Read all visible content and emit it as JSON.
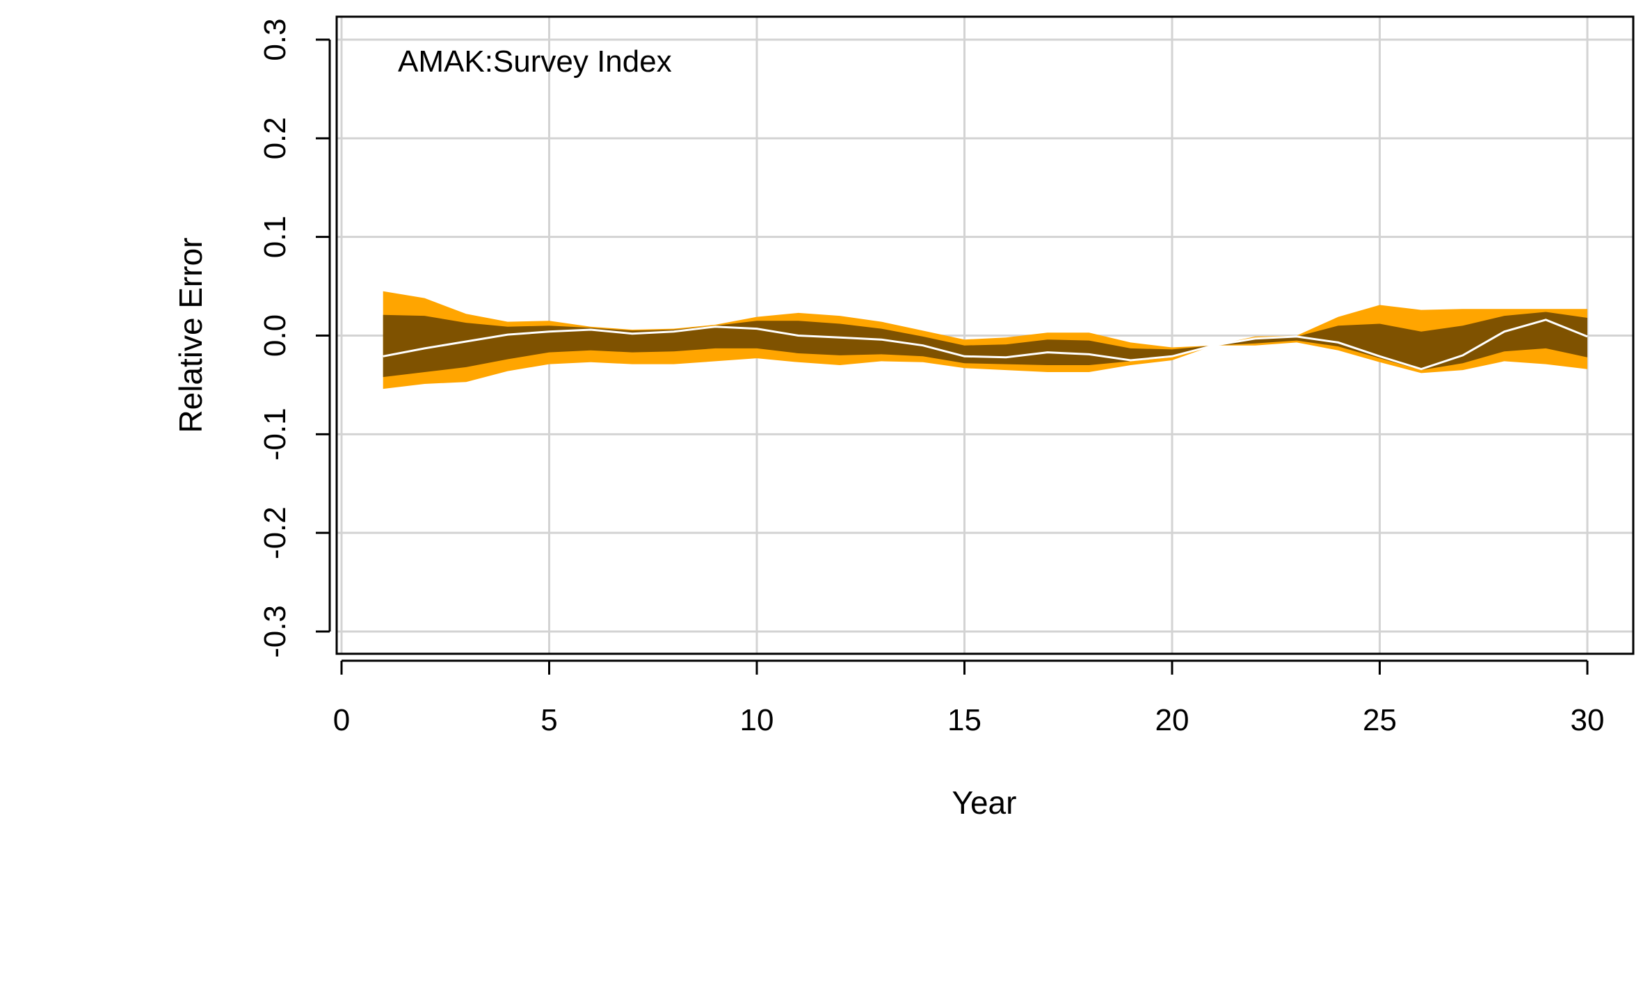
{
  "chart_data": {
    "type": "area",
    "title": "",
    "panel_label": "AMAK:Survey Index",
    "xlabel": "Year",
    "ylabel": "Relative Error",
    "xlim": [
      0,
      30
    ],
    "ylim": [
      -0.3,
      0.3
    ],
    "x_ticks": [
      0,
      5,
      10,
      15,
      20,
      25,
      30
    ],
    "x_tick_labels": [
      "0",
      "5",
      "10",
      "15",
      "20",
      "25",
      "30"
    ],
    "y_ticks": [
      -0.3,
      -0.2,
      -0.1,
      0.0,
      0.1,
      0.2,
      0.3
    ],
    "y_tick_labels": [
      "-0.3",
      "-0.2",
      "-0.1",
      "0.0",
      "0.1",
      "0.2",
      "0.3"
    ],
    "grid": true,
    "colors": {
      "outer_band": "#FFA500",
      "inner_band": "#7F5200",
      "median_line": "#FFFFFF",
      "grid": "#D3D3D3",
      "axis": "#000000"
    },
    "x": [
      1,
      2,
      3,
      4,
      5,
      6,
      7,
      8,
      9,
      10,
      11,
      12,
      13,
      14,
      15,
      16,
      17,
      18,
      19,
      20,
      21,
      22,
      23,
      24,
      25,
      26,
      27,
      28,
      29,
      30
    ],
    "series": [
      {
        "role": "outer_band",
        "upper": [
          0.045,
          0.038,
          0.022,
          0.014,
          0.015,
          0.009,
          0.006,
          0.007,
          0.011,
          0.019,
          0.023,
          0.02,
          0.014,
          0.005,
          -0.004,
          -0.002,
          0.003,
          0.003,
          -0.007,
          -0.012,
          -0.01,
          -0.001,
          0.0,
          0.019,
          0.031,
          0.026,
          0.027,
          0.027,
          0.027,
          0.027
        ],
        "lower": [
          -0.054,
          -0.049,
          -0.047,
          -0.036,
          -0.029,
          -0.027,
          -0.029,
          -0.029,
          -0.026,
          -0.023,
          -0.027,
          -0.03,
          -0.026,
          -0.027,
          -0.033,
          -0.035,
          -0.037,
          -0.037,
          -0.03,
          -0.025,
          -0.01,
          -0.01,
          -0.007,
          -0.015,
          -0.027,
          -0.038,
          -0.035,
          -0.026,
          -0.029,
          -0.034
        ]
      },
      {
        "role": "inner_band",
        "upper": [
          0.021,
          0.02,
          0.013,
          0.009,
          0.01,
          0.008,
          0.005,
          0.006,
          0.01,
          0.015,
          0.015,
          0.012,
          0.007,
          -0.001,
          -0.01,
          -0.009,
          -0.004,
          -0.005,
          -0.013,
          -0.014,
          -0.01,
          -0.003,
          -0.001,
          0.01,
          0.012,
          0.004,
          0.01,
          0.02,
          0.024,
          0.018
        ],
        "lower": [
          -0.042,
          -0.037,
          -0.032,
          -0.024,
          -0.017,
          -0.015,
          -0.017,
          -0.016,
          -0.013,
          -0.013,
          -0.018,
          -0.02,
          -0.019,
          -0.021,
          -0.028,
          -0.029,
          -0.03,
          -0.03,
          -0.026,
          -0.022,
          -0.01,
          -0.008,
          -0.005,
          -0.011,
          -0.023,
          -0.035,
          -0.028,
          -0.016,
          -0.013,
          -0.022
        ]
      },
      {
        "role": "median_line",
        "values": [
          -0.021,
          -0.013,
          -0.006,
          0.001,
          0.004,
          0.006,
          0.002,
          0.004,
          0.009,
          0.007,
          0.0,
          -0.002,
          -0.004,
          -0.01,
          -0.021,
          -0.022,
          -0.017,
          -0.019,
          -0.025,
          -0.021,
          -0.01,
          -0.003,
          -0.001,
          -0.007,
          -0.021,
          -0.034,
          -0.02,
          0.004,
          0.016,
          -0.001
        ]
      }
    ]
  }
}
